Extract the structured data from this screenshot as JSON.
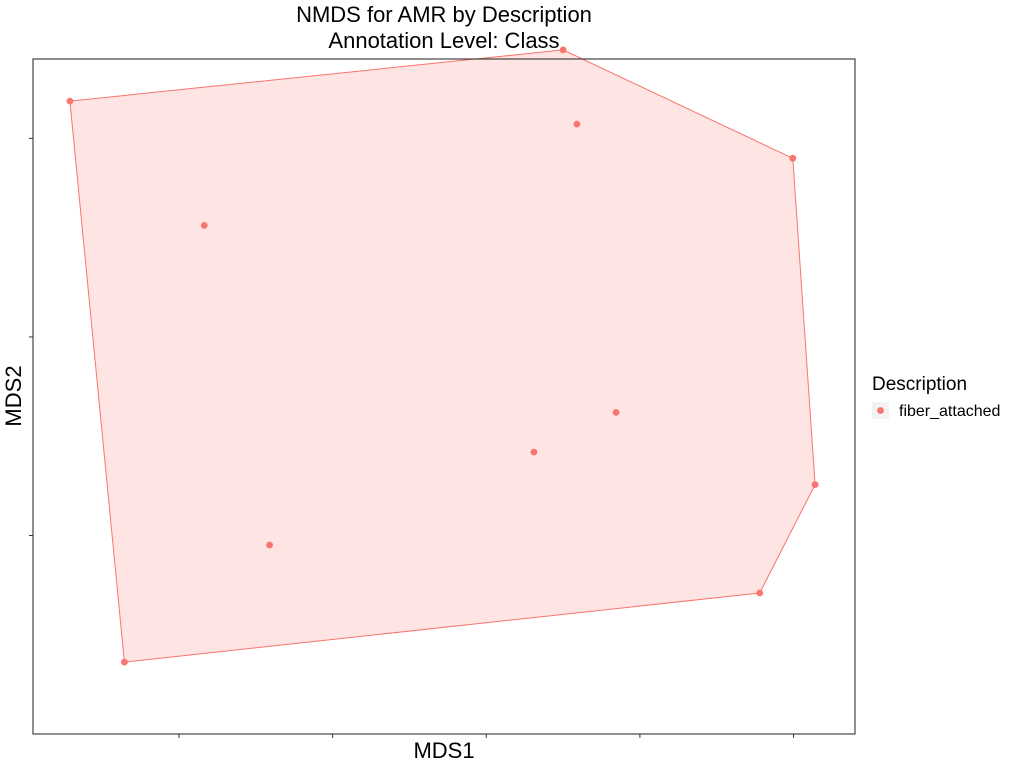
{
  "chart_data": {
    "type": "scatter",
    "title": "NMDS for AMR by Description",
    "subtitle": "Annotation Level: Class",
    "xlabel": "MDS1",
    "ylabel": "MDS2",
    "xlim": [
      -0.39,
      0.68
    ],
    "ylim": [
      -1.0,
      0.7
    ],
    "x_ticks": [
      -0.2,
      0.0,
      0.2,
      0.4,
      0.6
    ],
    "y_ticks": [
      -0.5,
      0.0,
      0.5
    ],
    "show_tick_labels": false,
    "grid": false,
    "legend": {
      "title": "Description",
      "position": "right",
      "entries": [
        {
          "label": "fiber_attached",
          "color": "#F8766D"
        }
      ]
    },
    "hull": true,
    "series": [
      {
        "name": "fiber_attached",
        "color": "#F8766D",
        "points": [
          {
            "x": -0.342,
            "y": 0.594
          },
          {
            "x": -0.167,
            "y": 0.281
          },
          {
            "x": -0.082,
            "y": -0.524
          },
          {
            "x": -0.271,
            "y": -0.819
          },
          {
            "x": 0.3,
            "y": 0.723
          },
          {
            "x": 0.318,
            "y": 0.536
          },
          {
            "x": 0.262,
            "y": -0.29
          },
          {
            "x": 0.369,
            "y": -0.19
          },
          {
            "x": 0.599,
            "y": 0.45
          },
          {
            "x": 0.628,
            "y": -0.372
          },
          {
            "x": 0.556,
            "y": -0.645
          }
        ]
      }
    ]
  }
}
